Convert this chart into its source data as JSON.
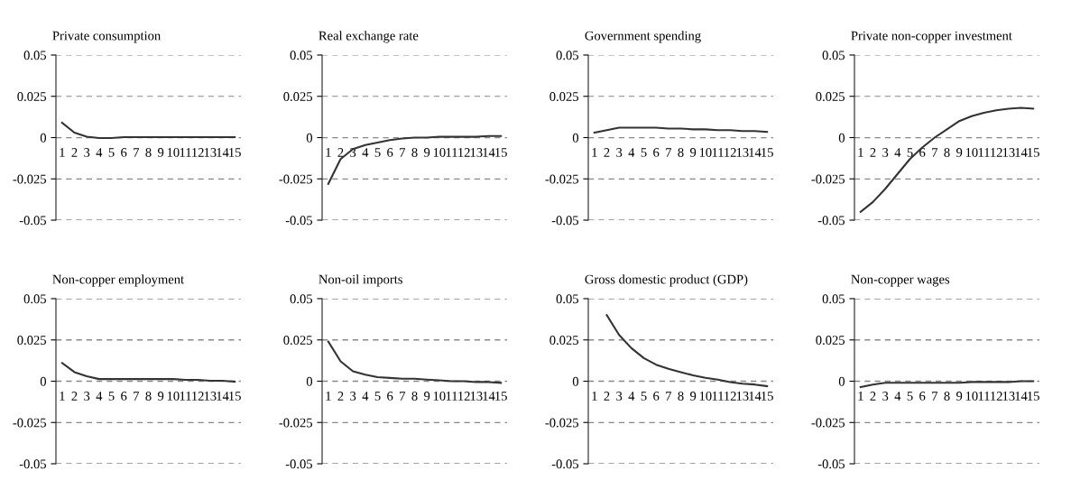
{
  "chart_data": [
    {
      "type": "line",
      "title": "Private consumption",
      "categories": [
        "1",
        "2",
        "3",
        "4",
        "5",
        "6",
        "7",
        "8",
        "9",
        "10",
        "11",
        "12",
        "13",
        "14",
        "15"
      ],
      "series": [
        {
          "color": "#333333",
          "values": [
            0.009,
            0.003,
            0.0005,
            -0.0003,
            -0.0003,
            0.0003,
            0.0003,
            0.0003,
            0.0003,
            0.0003,
            0.0003,
            0.0003,
            0.0003,
            0.0003,
            0.0003
          ]
        }
      ],
      "ylim": [
        -0.05,
        0.05
      ],
      "yticks": [
        -0.05,
        -0.025,
        0,
        0.025,
        0.05
      ],
      "grid": "y",
      "line_style": "solid",
      "marker": "none"
    },
    {
      "type": "line",
      "title": "Real exchange rate",
      "categories": [
        "1",
        "2",
        "3",
        "4",
        "5",
        "6",
        "7",
        "8",
        "9",
        "10",
        "11",
        "12",
        "13",
        "14",
        "15"
      ],
      "series": [
        {
          "color": "#333333",
          "values": [
            -0.028,
            -0.013,
            -0.007,
            -0.0045,
            -0.003,
            -0.0015,
            -0.0005,
            0,
            0,
            0.0005,
            0.0005,
            0.0005,
            0.0005,
            0.001,
            0.001
          ]
        }
      ],
      "ylim": [
        -0.05,
        0.05
      ],
      "yticks": [
        -0.05,
        -0.025,
        0,
        0.025,
        0.05
      ],
      "grid": "y",
      "line_style": "solid",
      "marker": "none"
    },
    {
      "type": "line",
      "title": "Government spending",
      "categories": [
        "1",
        "2",
        "3",
        "4",
        "5",
        "6",
        "7",
        "8",
        "9",
        "10",
        "11",
        "12",
        "13",
        "14",
        "15"
      ],
      "series": [
        {
          "color": "#333333",
          "values": [
            0.003,
            0.0045,
            0.006,
            0.006,
            0.006,
            0.006,
            0.0055,
            0.0055,
            0.005,
            0.005,
            0.0045,
            0.0045,
            0.004,
            0.004,
            0.0035
          ]
        }
      ],
      "ylim": [
        -0.05,
        0.05
      ],
      "yticks": [
        -0.05,
        -0.025,
        0,
        0.025,
        0.05
      ],
      "grid": "y",
      "line_style": "solid",
      "marker": "none"
    },
    {
      "type": "line",
      "title": "Private non-copper investment",
      "categories": [
        "1",
        "2",
        "3",
        "4",
        "5",
        "6",
        "7",
        "8",
        "9",
        "10",
        "11",
        "12",
        "13",
        "14",
        "15"
      ],
      "series": [
        {
          "color": "#333333",
          "values": [
            -0.045,
            -0.039,
            -0.031,
            -0.022,
            -0.013,
            -0.006,
            0,
            0.005,
            0.01,
            0.013,
            0.015,
            0.0165,
            0.0175,
            0.018,
            0.0175
          ]
        }
      ],
      "ylim": [
        -0.05,
        0.05
      ],
      "yticks": [
        -0.05,
        -0.025,
        0,
        0.025,
        0.05
      ],
      "grid": "y",
      "line_style": "solid",
      "marker": "none"
    },
    {
      "type": "line",
      "title": "Non-copper employment",
      "categories": [
        "1",
        "2",
        "3",
        "4",
        "5",
        "6",
        "7",
        "8",
        "9",
        "10",
        "11",
        "12",
        "13",
        "14",
        "15"
      ],
      "series": [
        {
          "color": "#333333",
          "values": [
            0.011,
            0.0055,
            0.003,
            0.0013,
            0.0013,
            0.0013,
            0.0013,
            0.0013,
            0.0013,
            0.0013,
            0.0008,
            0.0008,
            0.0003,
            0.0003,
            -0.0003
          ]
        }
      ],
      "ylim": [
        -0.05,
        0.05
      ],
      "yticks": [
        -0.05,
        -0.025,
        0,
        0.025,
        0.05
      ],
      "grid": "y",
      "line_style": "solid",
      "marker": "none"
    },
    {
      "type": "line",
      "title": "Non-oil imports",
      "categories": [
        "1",
        "2",
        "3",
        "4",
        "5",
        "6",
        "7",
        "8",
        "9",
        "10",
        "11",
        "12",
        "13",
        "14",
        "15"
      ],
      "series": [
        {
          "color": "#333333",
          "values": [
            0.024,
            0.012,
            0.006,
            0.004,
            0.0025,
            0.002,
            0.0015,
            0.0015,
            0.001,
            0.0005,
            0,
            0,
            -0.0005,
            -0.0005,
            -0.001
          ]
        }
      ],
      "ylim": [
        -0.05,
        0.05
      ],
      "yticks": [
        -0.05,
        -0.025,
        0,
        0.025,
        0.05
      ],
      "grid": "y",
      "line_style": "solid",
      "marker": "none"
    },
    {
      "type": "line",
      "title": "Gross domestic product (GDP)",
      "categories": [
        "1",
        "2",
        "3",
        "4",
        "5",
        "6",
        "7",
        "8",
        "9",
        "10",
        "11",
        "12",
        "13",
        "14",
        "15"
      ],
      "series": [
        {
          "color": "#333333",
          "values": [
            null,
            0.04,
            0.028,
            0.02,
            0.014,
            0.01,
            0.0075,
            0.0055,
            0.0035,
            0.002,
            0.001,
            -0.0005,
            -0.0015,
            -0.002,
            -0.003
          ]
        }
      ],
      "ylim": [
        -0.05,
        0.05
      ],
      "yticks": [
        -0.05,
        -0.025,
        0,
        0.025,
        0.05
      ],
      "grid": "y",
      "line_style": "solid",
      "marker": "none"
    },
    {
      "type": "line",
      "title": "Non-copper wages",
      "categories": [
        "1",
        "2",
        "3",
        "4",
        "5",
        "6",
        "7",
        "8",
        "9",
        "10",
        "11",
        "12",
        "13",
        "14",
        "15"
      ],
      "series": [
        {
          "color": "#333333",
          "values": [
            -0.0035,
            -0.002,
            -0.001,
            -0.001,
            -0.001,
            -0.001,
            -0.001,
            -0.001,
            -0.001,
            -0.0005,
            -0.0005,
            -0.0005,
            -0.0005,
            0,
            0
          ]
        }
      ],
      "ylim": [
        -0.05,
        0.05
      ],
      "yticks": [
        -0.05,
        -0.025,
        0,
        0.025,
        0.05
      ],
      "grid": "y",
      "line_style": "solid",
      "marker": "none"
    }
  ]
}
